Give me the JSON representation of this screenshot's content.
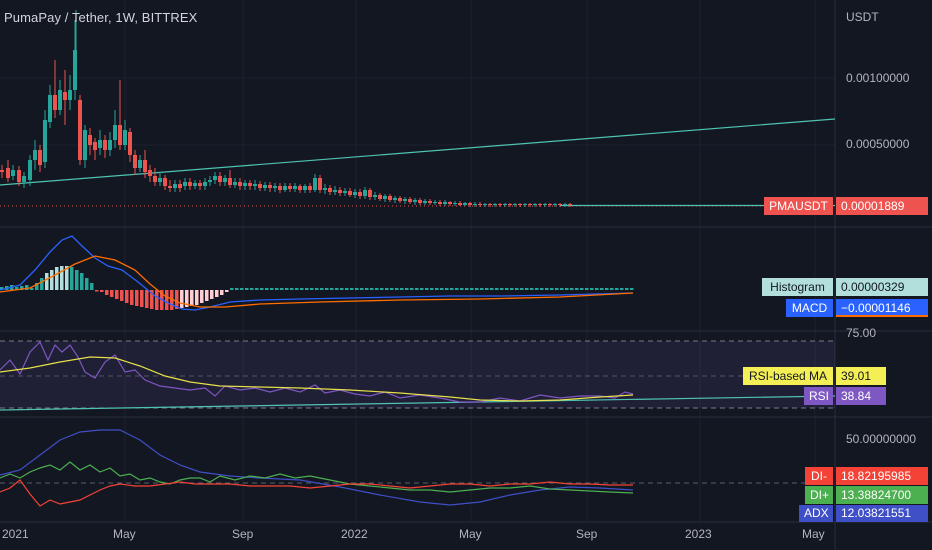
{
  "header": {
    "title": "PumaPay / Tether, 1W, BITTREX"
  },
  "price_axis": {
    "currency": "USDT",
    "ticks": [
      "0.00100000",
      "0.00050000"
    ]
  },
  "price_tag": {
    "symbol": "PMAUSDT",
    "value": "0.00001889"
  },
  "macd_pane": {
    "histogram_label": "Histogram",
    "histogram_value": "0.00000329",
    "macd_label": "MACD",
    "macd_value": "−0.00001146"
  },
  "rsi_pane": {
    "level": "75.00",
    "ma_label": "RSI-based MA",
    "ma_value": "39.01",
    "rsi_label": "RSI",
    "rsi_value": "38.84"
  },
  "adx_pane": {
    "level": "50.00000000",
    "di_minus_label": "DI-",
    "di_minus_value": "18.82195985",
    "di_plus_label": "DI+",
    "di_plus_value": "13.38824700",
    "adx_label": "ADX",
    "adx_value": "12.03821551"
  },
  "time_axis": [
    "2021",
    "May",
    "Sep",
    "2022",
    "May",
    "Sep",
    "2023",
    "May"
  ],
  "colors": {
    "background": "#131722",
    "up": "#26a69a",
    "down": "#ef5350",
    "macd": "#2962ff",
    "signal": "#ff6d00",
    "rsi": "#7e57c2",
    "rsi_ma": "#e6e04a",
    "di_plus": "#4caf50",
    "di_minus": "#f44336",
    "adx": "#3f4fc6",
    "trend": "#4fc3b1"
  }
}
